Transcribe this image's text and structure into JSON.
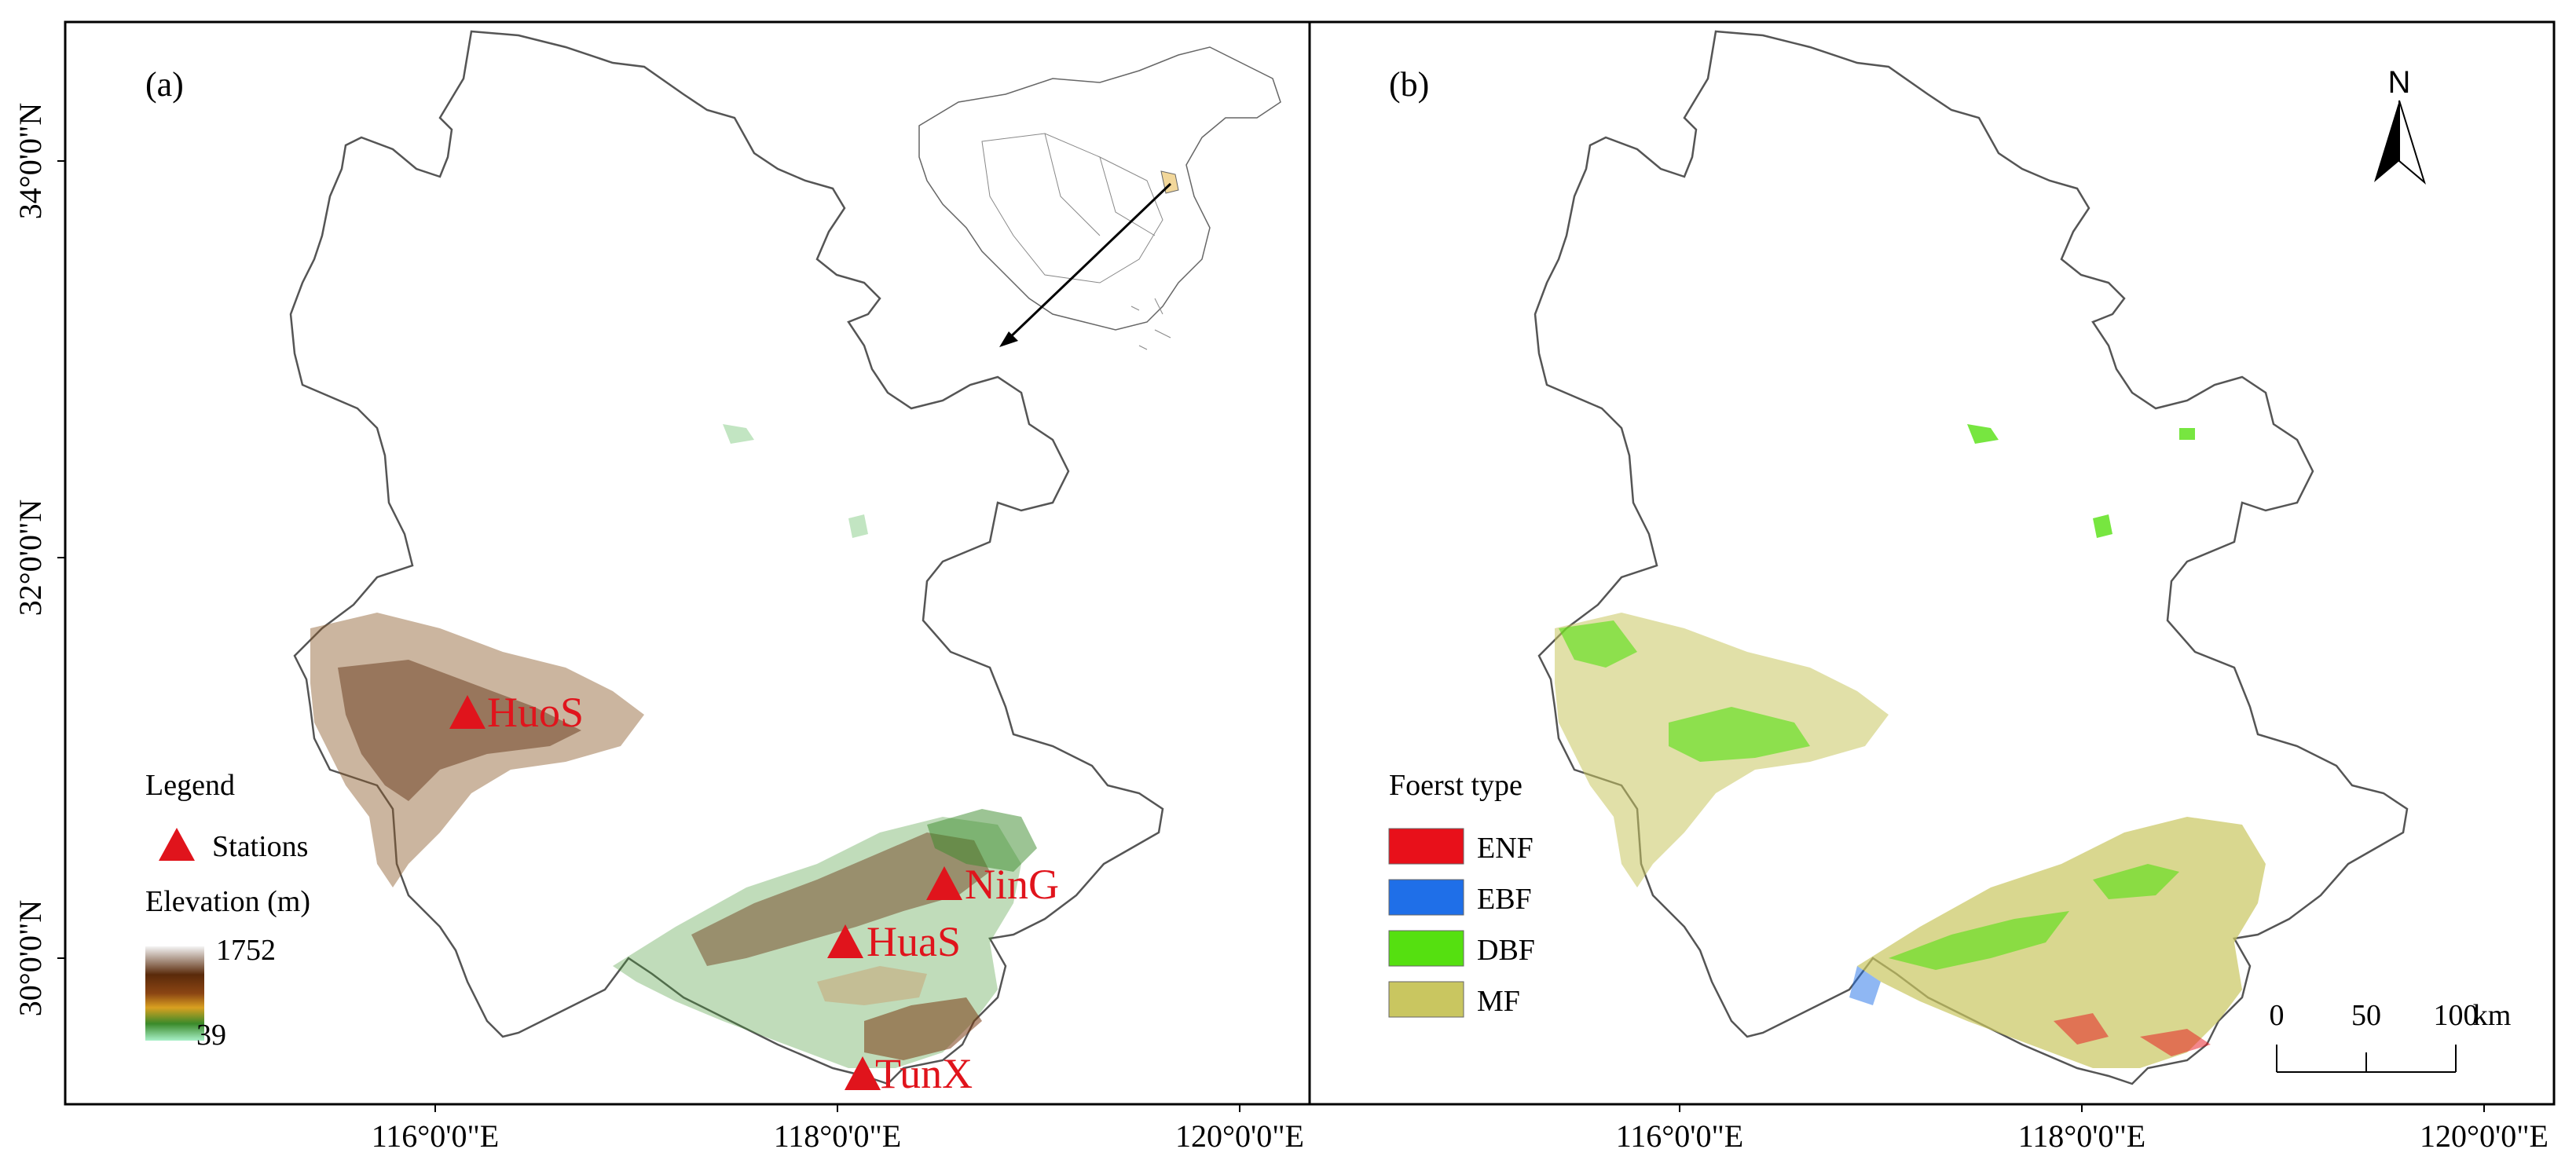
{
  "panels": {
    "a": {
      "label": "(a)"
    },
    "b": {
      "label": "(b)"
    }
  },
  "axes": {
    "lat_ticks": [
      "34°0'0\"N",
      "32°0'0\"N",
      "30°0'0\"N"
    ],
    "lon_ticks": [
      "116°0'0\"E",
      "118°0'0\"E",
      "120°0'0\"E"
    ]
  },
  "stations": [
    {
      "name": "HuoS"
    },
    {
      "name": "NinG"
    },
    {
      "name": "HuaS"
    },
    {
      "name": "TunX"
    }
  ],
  "legend_a": {
    "title": "Legend",
    "station_label": "Stations",
    "elevation_title": "Elevation (m)",
    "elevation_max": "1752",
    "elevation_min": "39",
    "elevation_colors": [
      "#f2f2f2",
      "#5a2a0a",
      "#8b4513",
      "#c8a020",
      "#3a8a2a",
      "#9ee6b0"
    ]
  },
  "legend_b": {
    "title": "Foerst type",
    "items": [
      {
        "label": "ENF",
        "color": "#e8101a"
      },
      {
        "label": "EBF",
        "color": "#1f6fe8"
      },
      {
        "label": "DBF",
        "color": "#55e010"
      },
      {
        "label": "MF",
        "color": "#c9c660"
      }
    ]
  },
  "north_arrow": {
    "label": "N"
  },
  "scale_bar": {
    "ticks": [
      "0",
      "50",
      "100"
    ],
    "unit": "km"
  },
  "colors": {
    "station": "#e0141c",
    "boundary": "#555555",
    "frame": "#000000"
  }
}
